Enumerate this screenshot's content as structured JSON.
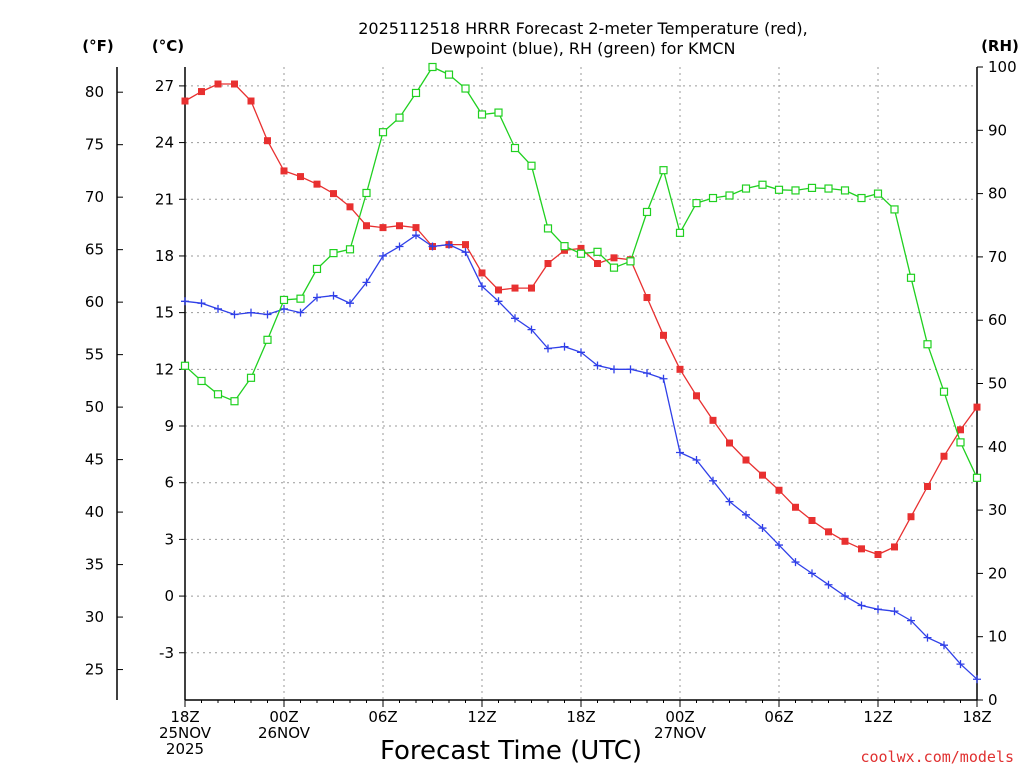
{
  "chart_data": {
    "type": "line",
    "title_line1": "2025112518 HRRR Forecast 2-meter Temperature (red),",
    "title_line2": "Dewpoint (blue), RH (green) for KMCN",
    "xlabel": "Forecast Time (UTC)",
    "credit": "coolwx.com/models",
    "units": {
      "fahrenheit": "(°F)",
      "celsius": "(°C)",
      "rh": "(RH)"
    },
    "x_hours": [
      0,
      1,
      2,
      3,
      4,
      5,
      6,
      7,
      8,
      9,
      10,
      11,
      12,
      13,
      14,
      15,
      16,
      17,
      18,
      19,
      20,
      21,
      22,
      23,
      24,
      25,
      26,
      27,
      28,
      29,
      30,
      31,
      32,
      33,
      34,
      35,
      36,
      37,
      38,
      39,
      40,
      41,
      42,
      43,
      44,
      45,
      46,
      47,
      48
    ],
    "xlim": [
      0,
      48
    ],
    "x_ticks": [
      {
        "hour": 0,
        "lines": [
          "18Z",
          "25NOV",
          "2025"
        ]
      },
      {
        "hour": 6,
        "lines": [
          "00Z",
          "26NOV"
        ]
      },
      {
        "hour": 12,
        "lines": [
          "06Z"
        ]
      },
      {
        "hour": 18,
        "lines": [
          "12Z"
        ]
      },
      {
        "hour": 24,
        "lines": [
          "18Z"
        ]
      },
      {
        "hour": 30,
        "lines": [
          "00Z",
          "27NOV"
        ]
      },
      {
        "hour": 36,
        "lines": [
          "06Z"
        ]
      },
      {
        "hour": 42,
        "lines": [
          "12Z"
        ]
      },
      {
        "hour": 48,
        "lines": [
          "18Z"
        ]
      }
    ],
    "celsius_axis": {
      "ylim": [
        -5.5,
        28.0
      ],
      "ticks": [
        "27",
        "24",
        "21",
        "18",
        "15",
        "12",
        "9",
        "6",
        "3",
        "0",
        "-3"
      ]
    },
    "fahrenheit_axis": {
      "ticks": [
        "80",
        "75",
        "70",
        "65",
        "60",
        "55",
        "50",
        "45",
        "40",
        "35",
        "30",
        "25"
      ]
    },
    "rh_axis": {
      "ylim": [
        0,
        100
      ],
      "ticks": [
        "100",
        "90",
        "80",
        "70",
        "60",
        "50",
        "40",
        "30",
        "20",
        "10",
        "0"
      ]
    },
    "series": [
      {
        "name": "Temperature",
        "units": "C",
        "color": "#e83030",
        "marker": "filled-square",
        "values": [
          26.2,
          26.7,
          27.1,
          27.1,
          26.2,
          24.1,
          22.5,
          22.2,
          21.8,
          21.3,
          20.6,
          19.6,
          19.5,
          19.6,
          19.5,
          18.5,
          18.6,
          18.6,
          17.1,
          16.2,
          16.3,
          16.3,
          17.6,
          18.3,
          18.4,
          17.6,
          17.9,
          17.8,
          15.8,
          13.8,
          12.0,
          10.6,
          9.3,
          8.1,
          7.2,
          6.4,
          5.6,
          4.7,
          4.0,
          3.4,
          2.9,
          2.5,
          2.2,
          2.6,
          4.2,
          5.8,
          7.4,
          8.8,
          10.0
        ]
      },
      {
        "name": "Dewpoint",
        "units": "C",
        "color": "#3040e8",
        "marker": "plus",
        "values": [
          15.6,
          15.5,
          15.2,
          14.9,
          15.0,
          14.9,
          15.2,
          15.0,
          15.8,
          15.9,
          15.5,
          16.6,
          18.0,
          18.5,
          19.1,
          18.5,
          18.6,
          18.2,
          16.4,
          15.6,
          14.7,
          14.1,
          13.1,
          13.2,
          12.9,
          12.2,
          12.0,
          12.0,
          11.8,
          11.5,
          7.6,
          7.2,
          6.1,
          5.0,
          4.3,
          3.6,
          2.7,
          1.8,
          1.2,
          0.6,
          0.0,
          -0.5,
          -0.7,
          -0.8,
          -1.3,
          -2.2,
          -2.6,
          -3.6,
          -4.4
        ]
      },
      {
        "name": "RH",
        "units": "%",
        "color": "#20d020",
        "marker": "open-square",
        "values": [
          52.8,
          50.4,
          48.3,
          47.2,
          50.9,
          56.9,
          63.2,
          63.4,
          68.1,
          70.6,
          71.2,
          80.1,
          89.7,
          92.0,
          95.9,
          100.0,
          98.8,
          96.6,
          92.5,
          92.8,
          87.2,
          84.4,
          74.5,
          71.7,
          70.5,
          70.8,
          68.3,
          69.3,
          77.1,
          83.7,
          73.8,
          78.5,
          79.3,
          79.7,
          80.8,
          81.4,
          80.6,
          80.5,
          80.9,
          80.8,
          80.5,
          79.3,
          80.0,
          77.5,
          66.7,
          56.2,
          48.7,
          40.7,
          35.1
        ]
      }
    ]
  }
}
